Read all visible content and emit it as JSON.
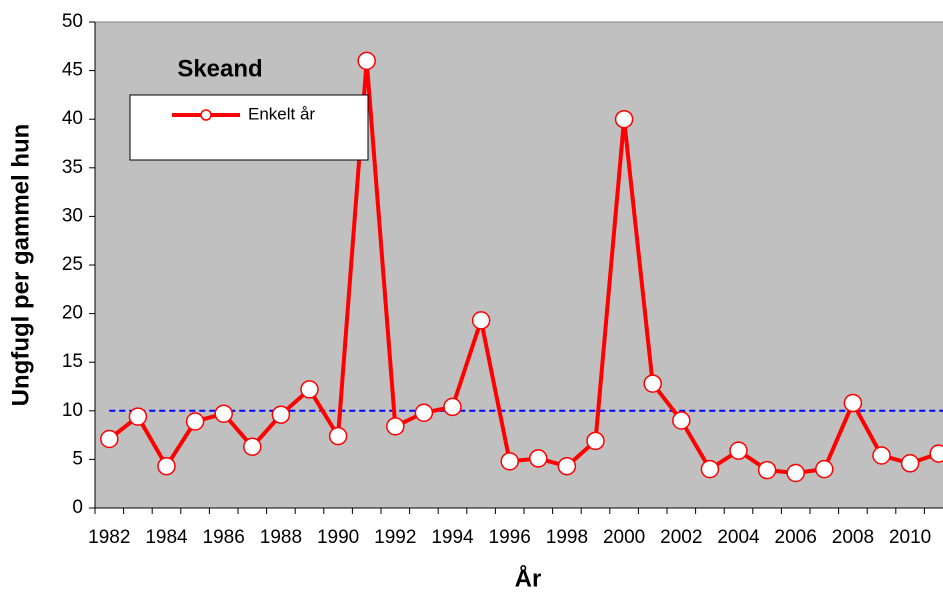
{
  "chart_data": {
    "type": "line",
    "title": "Skeand",
    "xlabel": "År",
    "ylabel": "Ungfugl per gammel hun",
    "categories": [
      "1982",
      null,
      "1984",
      null,
      "1986",
      null,
      "1988",
      null,
      "1990",
      null,
      "1992",
      null,
      "1994",
      null,
      "1996",
      null,
      "1998",
      null,
      "2000",
      null,
      "2002",
      null,
      "2004",
      null,
      "2006",
      null,
      "2008",
      null,
      "2010",
      null
    ],
    "series": [
      {
        "name": "Enkelt år",
        "color": "#ff0000",
        "values": [
          7.1,
          9.4,
          4.3,
          8.9,
          9.7,
          6.3,
          9.6,
          12.2,
          7.4,
          46,
          8.4,
          9.8,
          10.4,
          19.3,
          4.8,
          5.1,
          4.3,
          6.9,
          40,
          12.8,
          9.0,
          4.0,
          5.9,
          3.9,
          3.6,
          4.0,
          10.8,
          5.4,
          4.6,
          5.6
        ]
      }
    ],
    "reference_line": {
      "value": 10,
      "color": "#0000ff"
    },
    "ylim": [
      0,
      50
    ],
    "yticks": [
      0,
      5,
      10,
      15,
      20,
      25,
      30,
      35,
      40,
      45,
      50
    ],
    "background": "#c0c0c0"
  }
}
